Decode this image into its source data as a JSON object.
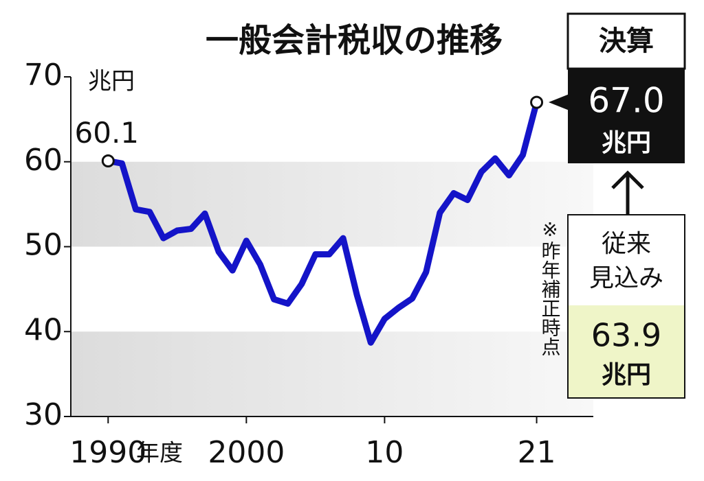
{
  "chart_data": {
    "type": "line",
    "title": "一般会計税収の推移",
    "y_unit": "兆円",
    "x_unit": "年度",
    "x": [
      1990,
      1991,
      1992,
      1993,
      1994,
      1995,
      1996,
      1997,
      1998,
      1999,
      2000,
      2001,
      2002,
      2003,
      2004,
      2005,
      2006,
      2007,
      2008,
      2009,
      2010,
      2011,
      2012,
      2013,
      2014,
      2015,
      2016,
      2017,
      2018,
      2019,
      2020,
      2021
    ],
    "values": [
      60.1,
      59.8,
      54.4,
      54.1,
      51.0,
      51.9,
      52.1,
      53.9,
      49.4,
      47.2,
      50.7,
      47.9,
      43.8,
      43.3,
      45.6,
      49.1,
      49.1,
      51.0,
      44.3,
      38.7,
      41.5,
      42.8,
      43.9,
      47.0,
      54.0,
      56.3,
      55.5,
      58.8,
      60.4,
      58.4,
      60.8,
      67.0
    ],
    "value_labels": [
      "60.1",
      null,
      null,
      null,
      null,
      null,
      null,
      null,
      null,
      null,
      null,
      null,
      null,
      null,
      null,
      null,
      null,
      null,
      null,
      null,
      null,
      null,
      null,
      null,
      null,
      null,
      null,
      null,
      null,
      null,
      null,
      "67.0"
    ],
    "color": "#1414c8",
    "xlim": [
      1987.3,
      2025.1
    ],
    "xticks": [
      1990,
      2000,
      {
        "value": 2010,
        "label": "10"
      },
      {
        "value": 2021,
        "label": "21"
      }
    ],
    "ylim": [
      30,
      70
    ],
    "yticks": [
      30,
      40,
      50,
      60,
      70
    ],
    "bands": true,
    "annotations": {
      "final_title": "決算",
      "forecast_title": [
        "従来",
        "見込み"
      ],
      "forecast_value": 63.9,
      "note": "※昨年補正時点"
    }
  }
}
